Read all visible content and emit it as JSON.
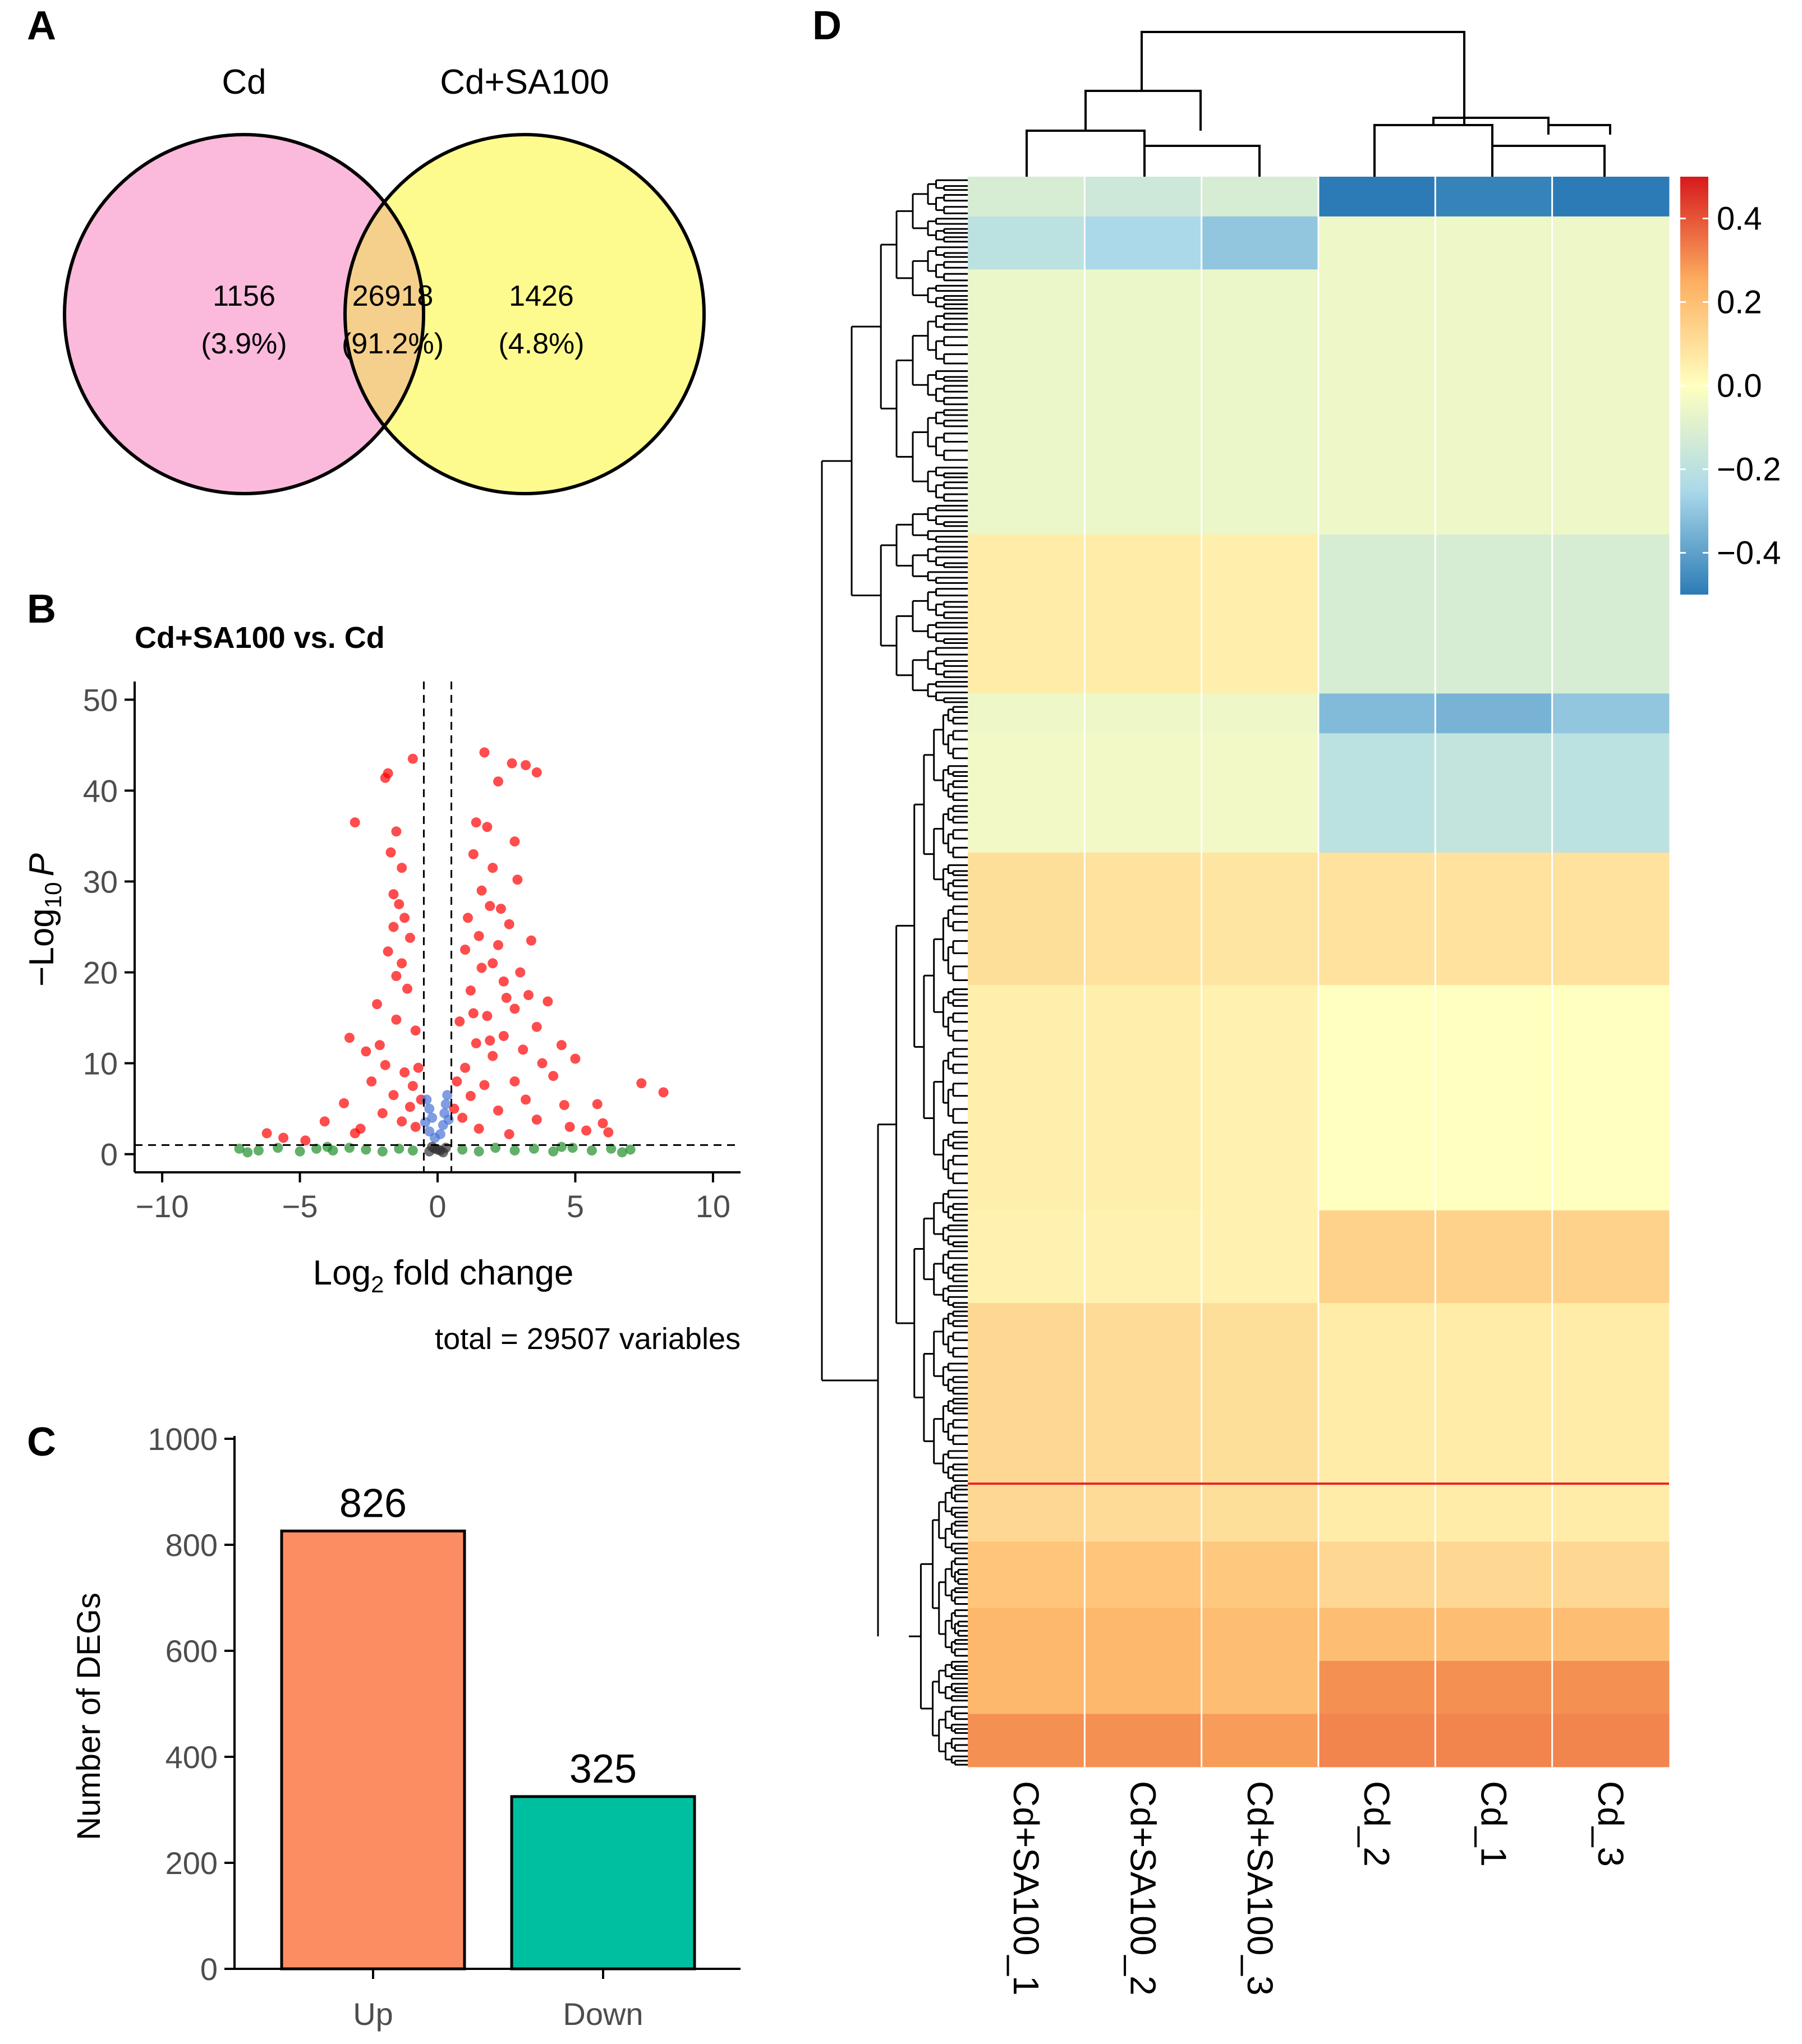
{
  "panel_labels": {
    "a": "A",
    "b": "B",
    "c": "C",
    "d": "D"
  },
  "chart_data": [
    {
      "type": "venn",
      "sets": [
        {
          "name": "Cd",
          "only_count": "1156",
          "only_pct": "(3.9%)",
          "color": "#fbbadb"
        },
        {
          "name": "Cd+SA100",
          "only_count": "1426",
          "only_pct": "(4.8%)",
          "color": "#fdfb8e"
        }
      ],
      "overlap": {
        "count": "26918",
        "pct": "(91.2%)",
        "color": "#f5d08c"
      }
    },
    {
      "type": "scatter",
      "title": "Cd+SA100 vs. Cd",
      "ylabel_main": "−Log",
      "ylabel_sub": "10",
      "ylabel_var": "P",
      "xlabel_main": "Log",
      "xlabel_sub": "2",
      "xlabel_rest": " fold change",
      "caption": "total = 29507 variables",
      "xlim": [
        -11,
        11
      ],
      "ylim": [
        -2,
        52
      ],
      "xticks": [
        {
          "v": -10,
          "label": "−10"
        },
        {
          "v": -5,
          "label": "−5"
        },
        {
          "v": 0,
          "label": "0"
        },
        {
          "v": 5,
          "label": "5"
        },
        {
          "v": 10,
          "label": "10"
        }
      ],
      "yticks": [
        {
          "v": 0,
          "label": "0"
        },
        {
          "v": 10,
          "label": "10"
        },
        {
          "v": 20,
          "label": "20"
        },
        {
          "v": 30,
          "label": "30"
        },
        {
          "v": 40,
          "label": "40"
        },
        {
          "v": 50,
          "label": "50"
        }
      ],
      "fc_cutoff": 0.5,
      "p_cutoff": 1.0,
      "colors": {
        "sig_both": "#ff0000",
        "sig_p": "#4a74d8",
        "sig_fc": "#1f8f2a",
        "ns": "#333333"
      },
      "points": [
        [
          -1.8,
          41.9
        ],
        [
          -1.9,
          41.4
        ],
        [
          -0.9,
          43.5
        ],
        [
          -3.0,
          36.5
        ],
        [
          -1.5,
          35.5
        ],
        [
          -1.7,
          33.2
        ],
        [
          -1.3,
          31.5
        ],
        [
          -1.6,
          28.6
        ],
        [
          -1.4,
          27.5
        ],
        [
          -1.2,
          26.0
        ],
        [
          -1.6,
          25.0
        ],
        [
          -1.0,
          23.8
        ],
        [
          -1.8,
          22.3
        ],
        [
          -1.3,
          21.0
        ],
        [
          -1.5,
          19.6
        ],
        [
          -2.2,
          16.5
        ],
        [
          -1.1,
          18.2
        ],
        [
          -3.2,
          12.8
        ],
        [
          -2.6,
          11.3
        ],
        [
          -0.8,
          13.6
        ],
        [
          -1.9,
          9.8
        ],
        [
          -1.2,
          9.0
        ],
        [
          -2.4,
          8.0
        ],
        [
          -0.9,
          7.5
        ],
        [
          -3.4,
          5.6
        ],
        [
          -4.1,
          3.6
        ],
        [
          -1.6,
          6.5
        ],
        [
          -2.0,
          4.5
        ],
        [
          -1.3,
          3.6
        ],
        [
          -0.8,
          3.0
        ],
        [
          -2.8,
          2.8
        ],
        [
          -1.0,
          5.2
        ],
        [
          -3.0,
          2.3
        ],
        [
          -5.6,
          1.8
        ],
        [
          -6.2,
          2.3
        ],
        [
          -4.8,
          1.5
        ],
        [
          -0.7,
          9.5
        ],
        [
          -0.6,
          6.0
        ],
        [
          -1.5,
          14.8
        ],
        [
          -2.1,
          12.0
        ],
        [
          2.7,
          43.0
        ],
        [
          3.2,
          42.8
        ],
        [
          1.7,
          44.2
        ],
        [
          3.6,
          42.0
        ],
        [
          2.2,
          41.0
        ],
        [
          1.4,
          36.5
        ],
        [
          1.8,
          36.0
        ],
        [
          2.8,
          34.4
        ],
        [
          1.3,
          33.0
        ],
        [
          2.0,
          31.5
        ],
        [
          2.9,
          30.2
        ],
        [
          1.6,
          29.0
        ],
        [
          1.9,
          27.3
        ],
        [
          2.3,
          27.0
        ],
        [
          1.1,
          26.0
        ],
        [
          2.6,
          25.3
        ],
        [
          1.5,
          24.0
        ],
        [
          2.2,
          23.0
        ],
        [
          3.4,
          23.5
        ],
        [
          1.0,
          22.5
        ],
        [
          2.0,
          21.0
        ],
        [
          1.6,
          20.5
        ],
        [
          3.0,
          20.0
        ],
        [
          2.4,
          19.0
        ],
        [
          1.2,
          18.0
        ],
        [
          3.3,
          17.5
        ],
        [
          4.0,
          16.8
        ],
        [
          2.8,
          16.0
        ],
        [
          1.8,
          15.2
        ],
        [
          0.8,
          14.6
        ],
        [
          3.6,
          14.0
        ],
        [
          4.5,
          12.0
        ],
        [
          2.4,
          13.0
        ],
        [
          1.4,
          12.2
        ],
        [
          5.0,
          10.5
        ],
        [
          3.8,
          10.0
        ],
        [
          2.0,
          10.8
        ],
        [
          1.0,
          9.5
        ],
        [
          4.2,
          8.6
        ],
        [
          2.8,
          8.0
        ],
        [
          1.7,
          7.6
        ],
        [
          5.8,
          5.5
        ],
        [
          4.6,
          5.4
        ],
        [
          3.2,
          6.0
        ],
        [
          1.2,
          6.4
        ],
        [
          2.2,
          4.8
        ],
        [
          0.9,
          4.0
        ],
        [
          3.6,
          3.8
        ],
        [
          4.8,
          3.0
        ],
        [
          5.4,
          2.6
        ],
        [
          6.0,
          3.4
        ],
        [
          1.5,
          2.8
        ],
        [
          2.6,
          2.2
        ],
        [
          7.4,
          7.8
        ],
        [
          8.2,
          6.8
        ],
        [
          6.2,
          2.4
        ],
        [
          0.7,
          8.0
        ],
        [
          0.6,
          5.0
        ],
        [
          1.3,
          15.5
        ],
        [
          2.5,
          17.2
        ],
        [
          1.9,
          12.5
        ],
        [
          3.1,
          11.5
        ],
        [
          -0.3,
          2.5
        ],
        [
          -0.2,
          4.0
        ],
        [
          -0.4,
          6.0
        ],
        [
          -0.1,
          1.8
        ],
        [
          -0.3,
          5.0
        ],
        [
          0.2,
          3.2
        ],
        [
          0.3,
          5.5
        ],
        [
          0.4,
          3.8
        ],
        [
          0.1,
          2.2
        ],
        [
          0.35,
          6.5
        ],
        [
          -0.45,
          3.5
        ],
        [
          0.25,
          4.5
        ],
        [
          -7.2,
          0.6
        ],
        [
          -6.5,
          0.4
        ],
        [
          -5.8,
          0.7
        ],
        [
          -5.0,
          0.3
        ],
        [
          -4.4,
          0.6
        ],
        [
          -3.8,
          0.4
        ],
        [
          -3.2,
          0.7
        ],
        [
          -2.6,
          0.5
        ],
        [
          -2.0,
          0.3
        ],
        [
          -1.4,
          0.6
        ],
        [
          -0.9,
          0.4
        ],
        [
          0.9,
          0.5
        ],
        [
          1.5,
          0.3
        ],
        [
          2.1,
          0.7
        ],
        [
          2.8,
          0.4
        ],
        [
          3.5,
          0.6
        ],
        [
          4.2,
          0.3
        ],
        [
          4.9,
          0.7
        ],
        [
          5.6,
          0.4
        ],
        [
          6.3,
          0.6
        ],
        [
          7.0,
          0.5
        ],
        [
          -6.9,
          0.2
        ],
        [
          6.7,
          0.2
        ],
        [
          -4.0,
          0.8
        ],
        [
          4.5,
          0.8
        ],
        [
          -0.3,
          0.3
        ],
        [
          -0.1,
          0.6
        ],
        [
          0.1,
          0.4
        ],
        [
          0.3,
          0.7
        ],
        [
          -0.2,
          0.8
        ],
        [
          0.2,
          0.2
        ],
        [
          0.0,
          0.5
        ]
      ]
    },
    {
      "type": "bar",
      "ylabel": "Number of DEGs",
      "categories": [
        "Up",
        "Down"
      ],
      "values": [
        826,
        325
      ],
      "value_labels": [
        "826",
        "325"
      ],
      "colors": [
        "#fc8d62",
        "#00bfa0"
      ],
      "ylim": [
        0,
        1000
      ],
      "yticks": [
        {
          "v": 0,
          "label": "0"
        },
        {
          "v": 200,
          "label": "200"
        },
        {
          "v": 400,
          "label": "400"
        },
        {
          "v": 600,
          "label": "600"
        },
        {
          "v": 800,
          "label": "800"
        },
        {
          "v": 1000,
          "label": "1000"
        }
      ]
    },
    {
      "type": "heatmap",
      "columns": [
        "Cd+SA100_1",
        "Cd+SA100_2",
        "Cd+SA100_3",
        "Cd_2",
        "Cd_1",
        "Cd_3"
      ],
      "colorbar": {
        "min": -0.5,
        "max": 0.5,
        "ticks": [
          {
            "v": 0.4,
            "label": "0.4"
          },
          {
            "v": 0.2,
            "label": "0.2"
          },
          {
            "v": 0.0,
            "label": "0.0"
          },
          {
            "v": -0.2,
            "label": "−0.2"
          },
          {
            "v": -0.4,
            "label": "−0.4"
          }
        ]
      },
      "palette": [
        "#2c7bb6",
        "#abd9e9",
        "#ffffbf",
        "#fdae61",
        "#d7191c"
      ],
      "row_blocks": [
        {
          "weight": 3,
          "values": [
            -0.12,
            -0.15,
            -0.12,
            -0.55,
            -0.48,
            -0.55
          ]
        },
        {
          "weight": 4,
          "values": [
            -0.2,
            -0.25,
            -0.3,
            -0.05,
            -0.05,
            -0.05
          ]
        },
        {
          "weight": 20,
          "values": [
            -0.06,
            -0.06,
            -0.06,
            -0.05,
            -0.05,
            -0.05
          ]
        },
        {
          "weight": 12,
          "values": [
            0.06,
            0.06,
            0.05,
            -0.12,
            -0.12,
            -0.12
          ]
        },
        {
          "weight": 3,
          "values": [
            -0.05,
            -0.05,
            -0.05,
            -0.33,
            -0.35,
            -0.3
          ]
        },
        {
          "weight": 9,
          "values": [
            -0.04,
            -0.04,
            -0.04,
            -0.2,
            -0.18,
            -0.2
          ]
        },
        {
          "weight": 10,
          "values": [
            0.1,
            0.09,
            0.08,
            0.09,
            0.09,
            0.09
          ]
        },
        {
          "weight": 17,
          "values": [
            0.05,
            0.05,
            0.04,
            0.0,
            0.0,
            0.0
          ]
        },
        {
          "weight": 7,
          "values": [
            0.04,
            0.04,
            0.04,
            0.14,
            0.14,
            0.14
          ]
        },
        {
          "weight": 18,
          "values": [
            0.12,
            0.11,
            0.1,
            0.06,
            0.06,
            0.06
          ]
        },
        {
          "weight": 5,
          "values": [
            0.18,
            0.18,
            0.17,
            0.12,
            0.12,
            0.12
          ]
        },
        {
          "weight": 4,
          "values": [
            0.22,
            0.22,
            0.2,
            0.2,
            0.2,
            0.2
          ]
        },
        {
          "weight": 4,
          "values": [
            0.22,
            0.22,
            0.2,
            0.3,
            0.3,
            0.3
          ]
        },
        {
          "weight": 4,
          "values": [
            0.3,
            0.3,
            0.28,
            0.32,
            0.32,
            0.32
          ]
        }
      ]
    }
  ]
}
